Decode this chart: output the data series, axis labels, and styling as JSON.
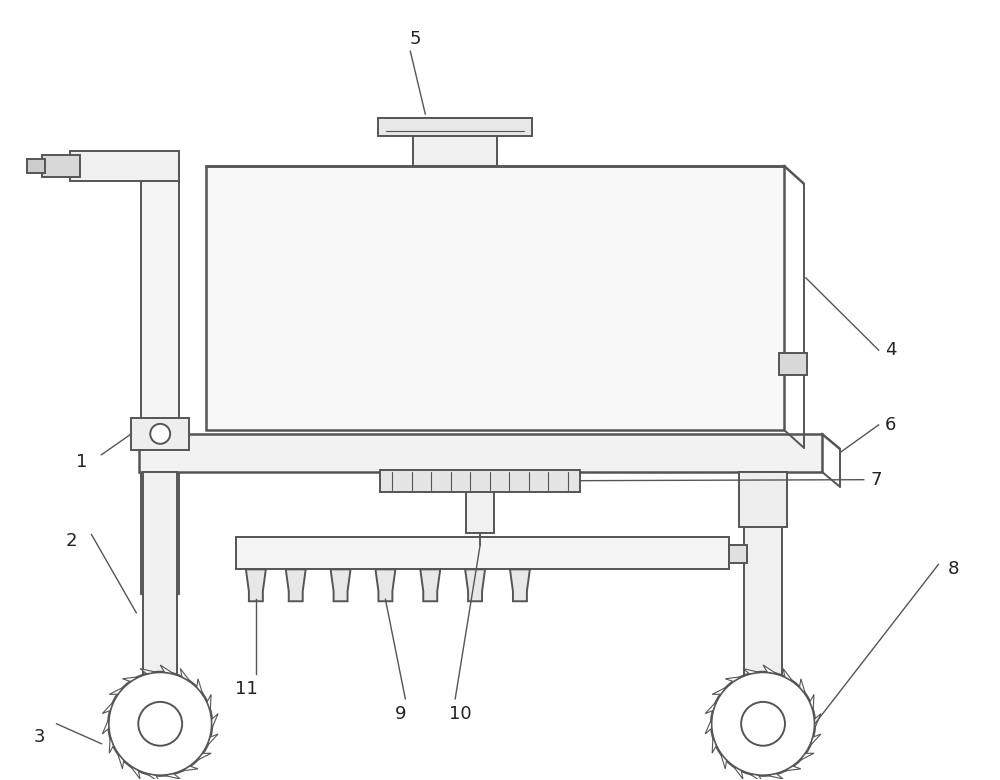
{
  "bg_color": "#ffffff",
  "line_color": "#555555",
  "line_width": 1.4,
  "thick_line": 1.8,
  "label_fontsize": 13,
  "lc": "#555555"
}
